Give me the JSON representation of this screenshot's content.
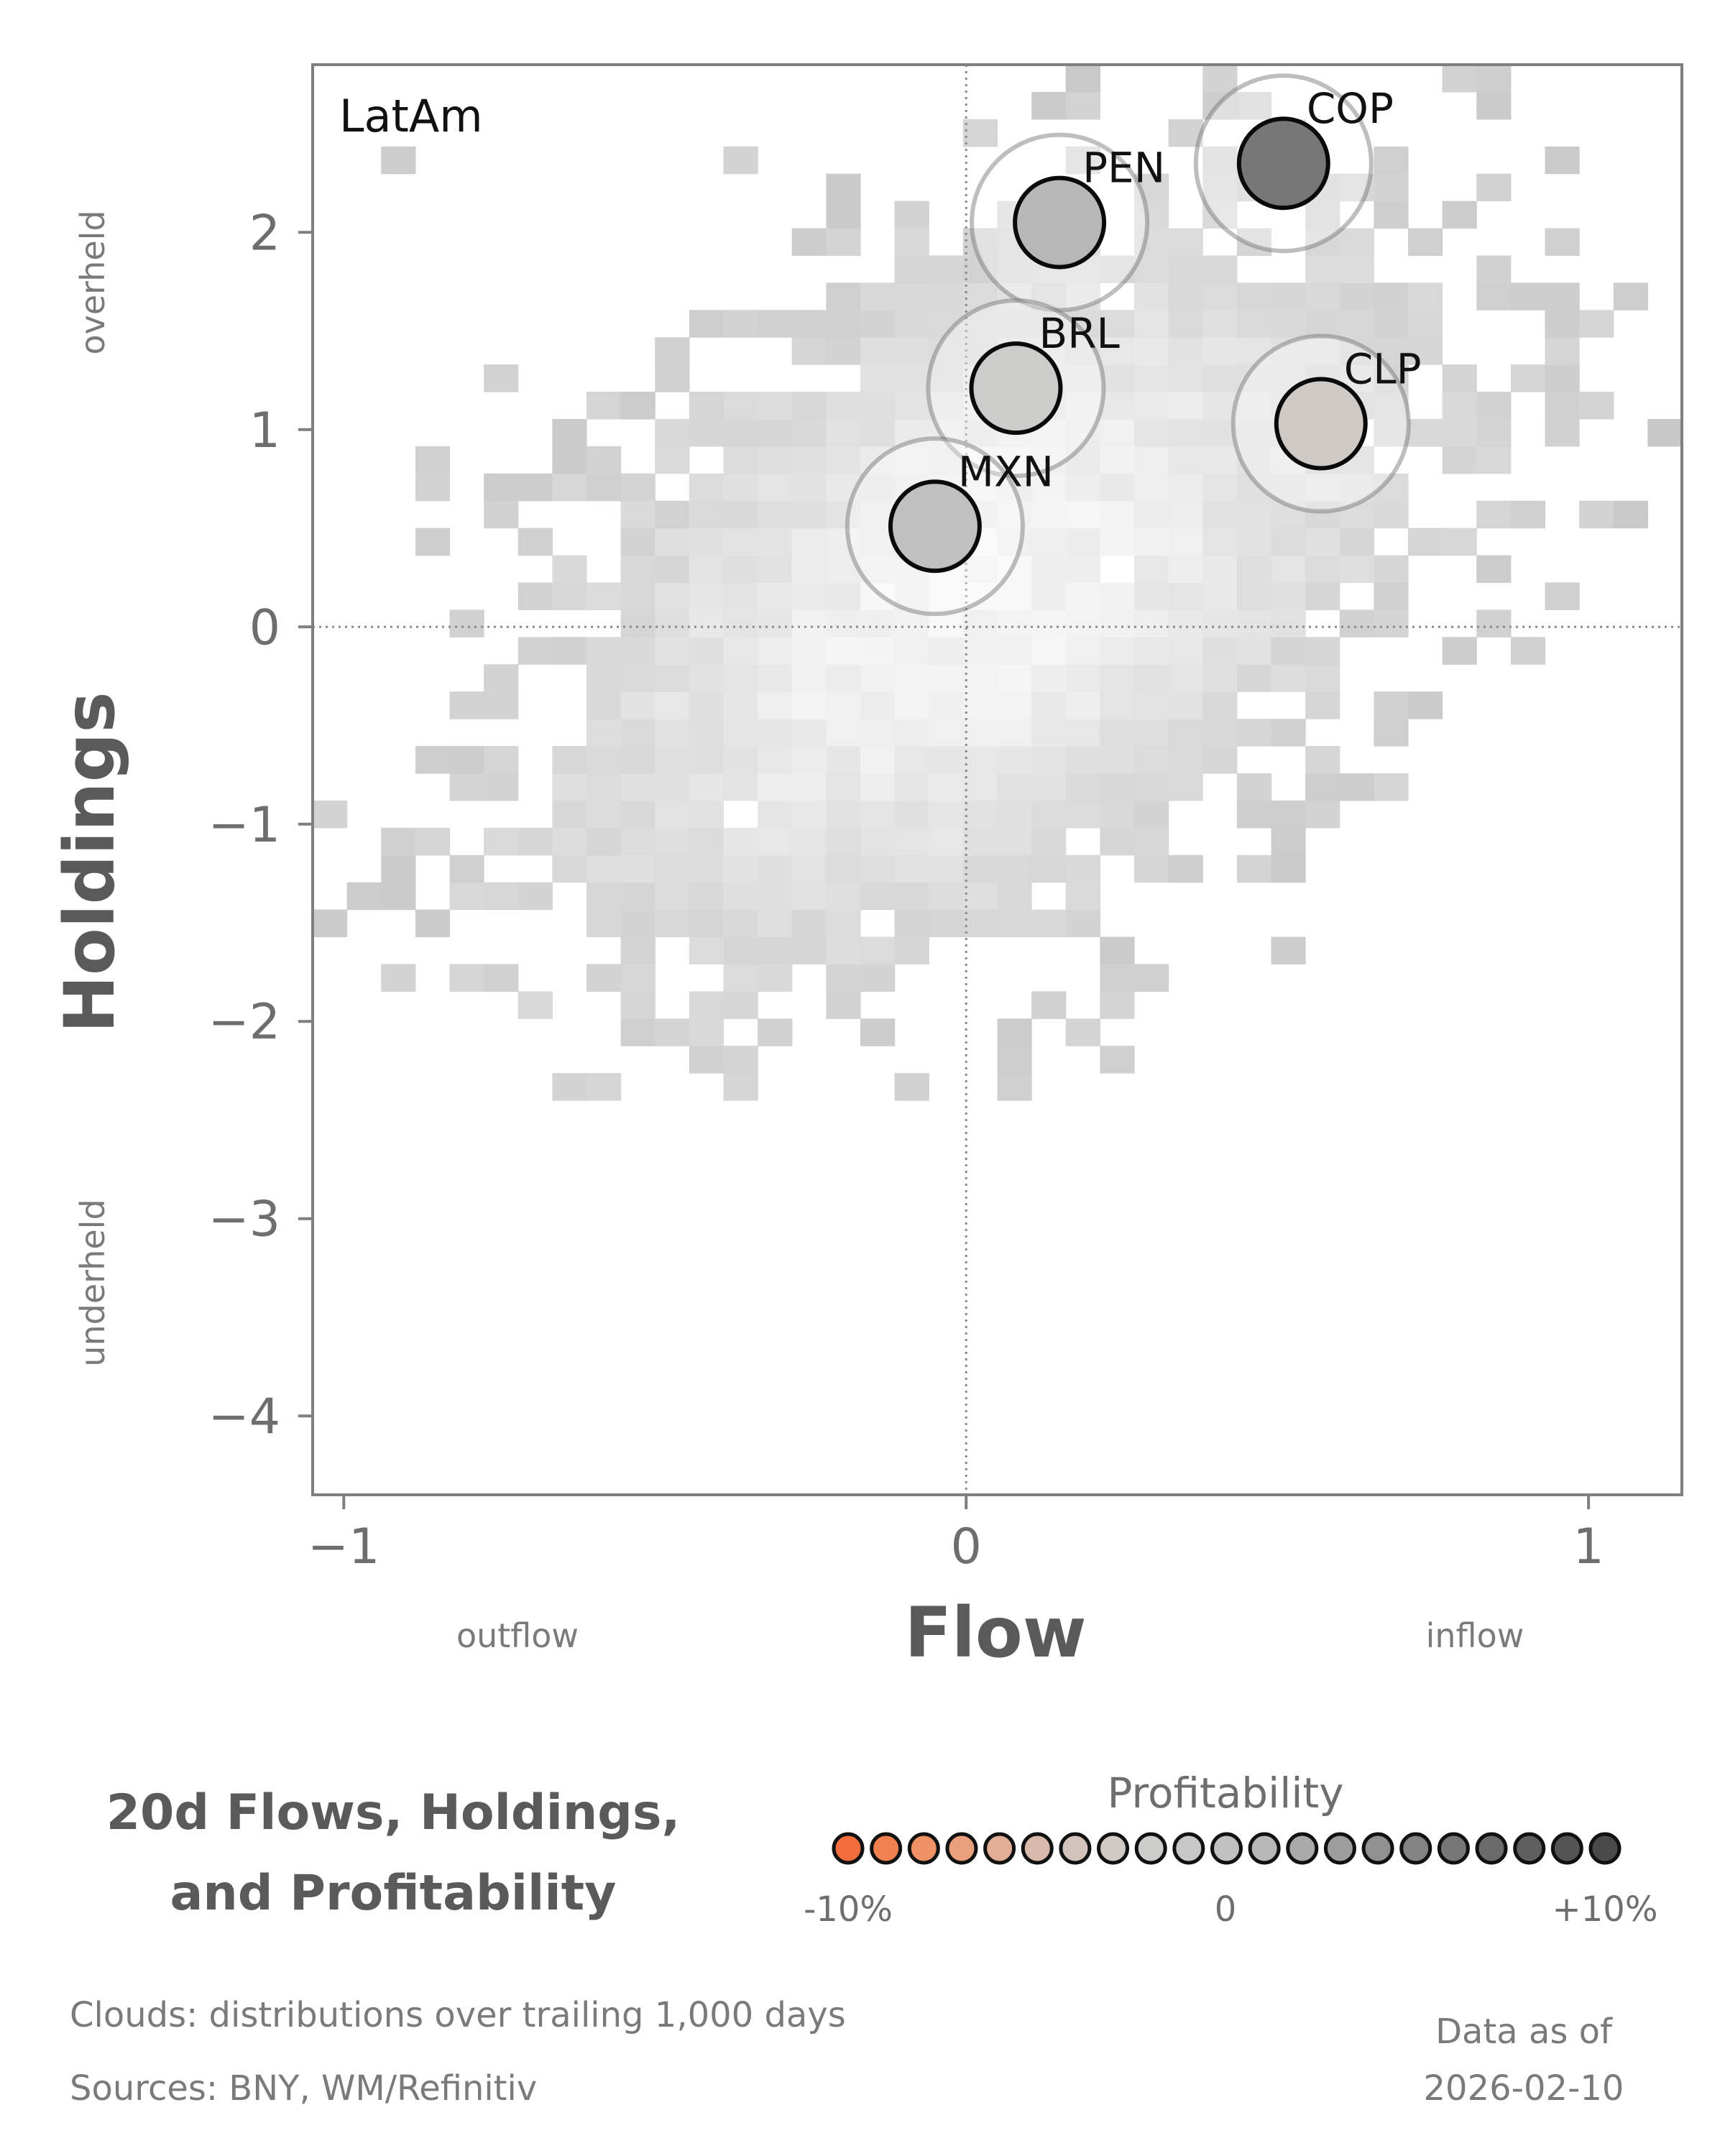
{
  "chart_data": {
    "type": "scatter",
    "panel_label": "LatAm",
    "xlabel": "Flow",
    "ylabel": "Holdings",
    "xlim": [
      -1.05,
      1.15
    ],
    "ylim": [
      -4.4,
      2.85
    ],
    "xticks": [
      -1,
      0,
      1
    ],
    "xtick_labels": [
      "−1",
      "0",
      "1"
    ],
    "yticks": [
      -4,
      -3,
      -2,
      -1,
      0,
      1,
      2
    ],
    "ytick_labels": [
      "−4",
      "−3",
      "−2",
      "−1",
      "0",
      "1",
      "2"
    ],
    "x_left_annotation": "outflow",
    "x_right_annotation": "inflow",
    "y_top_annotation": "overheld",
    "y_bottom_annotation": "underheld",
    "points": [
      {
        "label": "COP",
        "x": 0.51,
        "y": 2.35,
        "profitability": 0.06
      },
      {
        "label": "PEN",
        "x": 0.15,
        "y": 2.05,
        "profitability": 0.01
      },
      {
        "label": "BRL",
        "x": 0.08,
        "y": 1.21,
        "profitability": -0.02
      },
      {
        "label": "CLP",
        "x": 0.57,
        "y": 1.03,
        "profitability": -0.03
      },
      {
        "label": "MXN",
        "x": -0.05,
        "y": 0.51,
        "profitability": 0.0
      }
    ],
    "cloud": {
      "description": "distributions over trailing 1,000 days",
      "x_range": [
        -1.05,
        1.15
      ],
      "y_range": [
        -2.4,
        2.85
      ]
    },
    "legend": {
      "title": "Profitability",
      "min_label": "-10%",
      "mid_label": "0",
      "max_label": "+10%",
      "stops": 21,
      "colors": [
        "#f26d3d",
        "#f0814f",
        "#ed9264",
        "#e9a07c",
        "#e2ad95",
        "#d9b9ac",
        "#d2c4bd",
        "#cfcac6",
        "#cccccb",
        "#c6c7c6",
        "#bfc0bf",
        "#b6b7b6",
        "#a9aaa9",
        "#9c9d9c",
        "#8f908f",
        "#828382",
        "#767776",
        "#6a6b6a",
        "#5f5f5f",
        "#545454",
        "#4a4a4a"
      ]
    }
  },
  "title_lines": [
    "20d Flows, Holdings,",
    "and Profitability"
  ],
  "footer": {
    "clouds": "Clouds:  distributions over trailing 1,000 days",
    "sources": "Sources:  BNY, WM/Refinitiv",
    "asof_label": "Data as of",
    "asof_date": "2026-02-10"
  }
}
